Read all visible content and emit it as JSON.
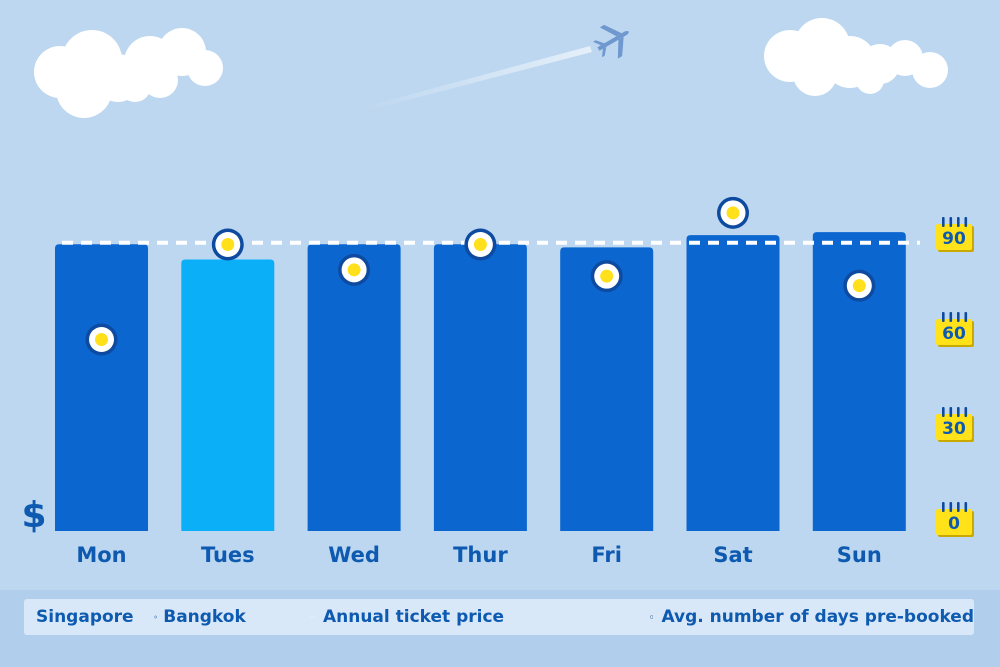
{
  "chart_data": {
    "type": "bar",
    "currency_symbol": "$",
    "categories": [
      "Mon",
      "Tues",
      "Wed",
      "Thur",
      "Fri",
      "Sat",
      "Sun"
    ],
    "ticket_price_relative": [
      0.94,
      0.89,
      0.94,
      0.94,
      0.93,
      0.97,
      0.98
    ],
    "annual_ticket_price_relative": 0.945,
    "avg_days_prebooked": [
      57,
      87,
      79,
      87,
      77,
      97,
      74
    ],
    "right_axis": {
      "ticks": [
        "90",
        "60",
        "30",
        "0"
      ],
      "ylim": [
        0,
        90
      ]
    },
    "highlight_category": "Tues",
    "colors": {
      "bar": "#0b66d0",
      "bar_highlight": "#0aaff8",
      "dash_line": "#ffffff",
      "marker_ring": "#0d4aa0",
      "marker_fill": "#ffe01a",
      "calendar": "#ffe21a",
      "text": "#0d5ab0"
    }
  },
  "legend": {
    "origin": "Singapore",
    "destination": "Bangkok",
    "annual_label": "Annual ticket price",
    "avg_label": "Avg. number of days pre-booked",
    "plane_icon": "plane-icon"
  }
}
